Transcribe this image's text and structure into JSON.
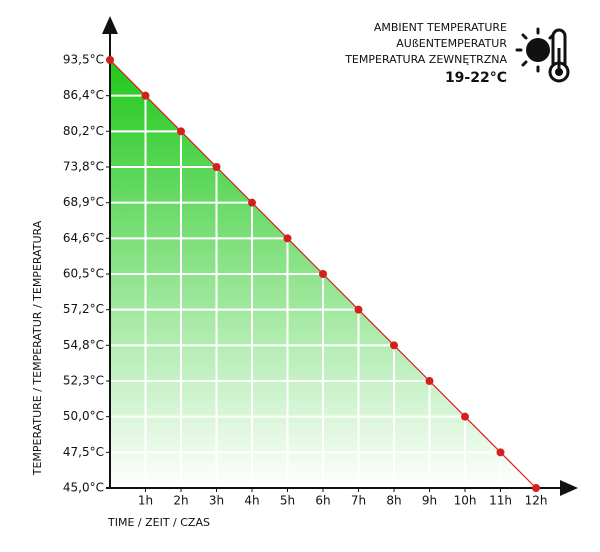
{
  "chart_data": {
    "type": "line",
    "ylabel": "TEMPERATURE / TEMPERATUR / TEMPERATURA",
    "xlabel": "TIME / ZEIT / CZAS",
    "annotations": [
      "AMBIENT TEMPERATURE",
      "AUßENTEMPERATUR",
      "TEMPERATURA ZEWNĘTRZNA",
      "19-22°C"
    ],
    "x": [
      0,
      1,
      2,
      3,
      4,
      5,
      6,
      7,
      8,
      9,
      10,
      11,
      12
    ],
    "series": [
      {
        "name": "Temperature",
        "color": "#d21f1f",
        "values": [
          93.5,
          86.4,
          80.2,
          73.8,
          68.9,
          64.6,
          60.5,
          57.2,
          54.8,
          52.3,
          50.0,
          47.5,
          45.0
        ]
      }
    ],
    "xlim": [
      0,
      12
    ],
    "xticks": [
      {
        "value": 1,
        "label": "1h"
      },
      {
        "value": 2,
        "label": "2h"
      },
      {
        "value": 3,
        "label": "3h"
      },
      {
        "value": 4,
        "label": "4h"
      },
      {
        "value": 5,
        "label": "5h"
      },
      {
        "value": 6,
        "label": "6h"
      },
      {
        "value": 7,
        "label": "7h"
      },
      {
        "value": 8,
        "label": "8h"
      },
      {
        "value": 9,
        "label": "9h"
      },
      {
        "value": 10,
        "label": "10h"
      },
      {
        "value": 11,
        "label": "11h"
      },
      {
        "value": 12,
        "label": "12h"
      }
    ],
    "ylim": [
      45.0,
      93.5
    ],
    "yticks": [
      {
        "value": 45.0,
        "label": "45,0°C"
      },
      {
        "value": 47.5,
        "label": "47,5°C"
      },
      {
        "value": 50.0,
        "label": "50,0°C"
      },
      {
        "value": 52.3,
        "label": "52,3°C"
      },
      {
        "value": 54.8,
        "label": "54,8°C"
      },
      {
        "value": 57.2,
        "label": "57,2°C"
      },
      {
        "value": 60.5,
        "label": "60,5°C"
      },
      {
        "value": 64.6,
        "label": "64,6°C"
      },
      {
        "value": 68.9,
        "label": "68,9°C"
      },
      {
        "value": 73.8,
        "label": "73,8°C"
      },
      {
        "value": 80.2,
        "label": "80,2°C"
      },
      {
        "value": 86.4,
        "label": "86,4°C"
      },
      {
        "value": 93.5,
        "label": "93,5°C"
      }
    ],
    "grid": true
  }
}
